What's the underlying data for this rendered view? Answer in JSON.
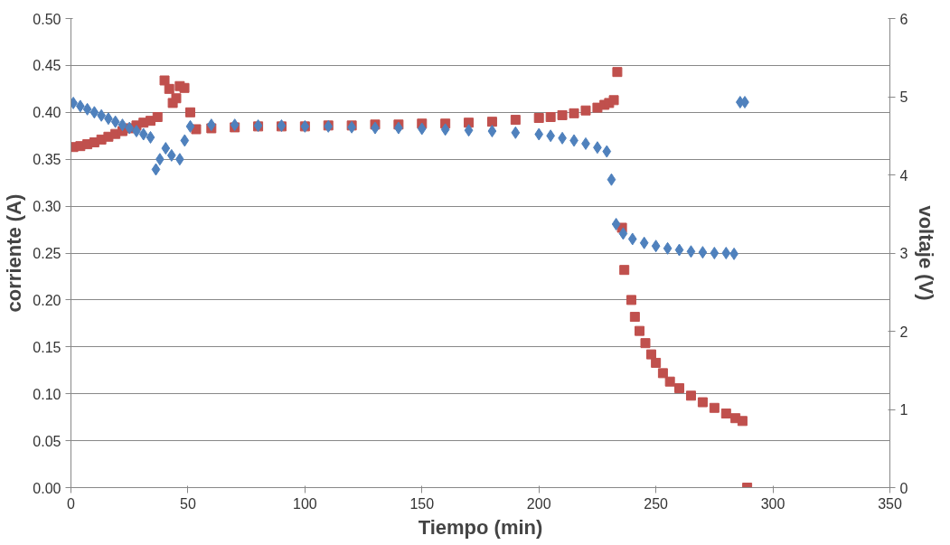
{
  "chart_data": {
    "type": "scatter",
    "xlabel": "Tiempo (min)",
    "ylabel": "corriente (A)",
    "y2label": "voltaje (V)",
    "xlim": [
      0,
      350
    ],
    "xticks": [
      0,
      50,
      100,
      150,
      200,
      250,
      300,
      350
    ],
    "ylim": [
      0,
      0.5
    ],
    "yticks": [
      {
        "value": 0,
        "label": "0.00"
      },
      0.05,
      {
        "value": 0.1,
        "label": "0.10"
      },
      0.15,
      {
        "value": 0.2,
        "label": "0.20"
      },
      0.25,
      {
        "value": 0.3,
        "label": "0.30"
      },
      0.35,
      {
        "value": 0.4,
        "label": "0.40"
      },
      0.45,
      {
        "value": 0.5,
        "label": "0.50"
      }
    ],
    "y2lim": [
      0,
      6
    ],
    "y2ticks": [
      0,
      1,
      2,
      3,
      4,
      5,
      6
    ],
    "grid": "y",
    "series": [
      {
        "color": "#c0504d",
        "marker": "square",
        "x": [
          1,
          4,
          7,
          10,
          13,
          16,
          19,
          22,
          25,
          28,
          31,
          34,
          37,
          40,
          42,
          43.5,
          45,
          46.5,
          48.5,
          51,
          53.5,
          60,
          70,
          80,
          90,
          100,
          110,
          120,
          130,
          140,
          150,
          160,
          170,
          180,
          190,
          200,
          205,
          210,
          215,
          220,
          225,
          228,
          230,
          232,
          233.5,
          235.5,
          236.5,
          239.5,
          241,
          243,
          245.5,
          248,
          250,
          253,
          256,
          260,
          265,
          270,
          275,
          280,
          284,
          287,
          289
        ],
        "values": [
          0.363,
          0.364,
          0.366,
          0.368,
          0.371,
          0.374,
          0.377,
          0.38,
          0.383,
          0.386,
          0.389,
          0.391,
          0.395,
          0.434,
          0.425,
          0.41,
          0.415,
          0.428,
          0.426,
          0.4,
          0.382,
          0.383,
          0.384,
          0.385,
          0.385,
          0.385,
          0.386,
          0.386,
          0.387,
          0.387,
          0.388,
          0.388,
          0.389,
          0.39,
          0.392,
          0.394,
          0.395,
          0.397,
          0.399,
          0.402,
          0.405,
          0.408,
          0.41,
          0.413,
          0.443,
          0.277,
          0.232,
          0.2,
          0.182,
          0.167,
          0.154,
          0.142,
          0.133,
          0.122,
          0.113,
          0.106,
          0.098,
          0.091,
          0.085,
          0.079,
          0.074,
          0.071,
          0.0
        ]
      },
      {
        "color": "#4f81bd",
        "marker": "diamond",
        "axis": "y2",
        "x": [
          1,
          4,
          7,
          10,
          13,
          16,
          19,
          22,
          25,
          28,
          31,
          34,
          36.3,
          38,
          40.5,
          43,
          46.5,
          48.6,
          51,
          60,
          70,
          80,
          90,
          100,
          110,
          120,
          130,
          140,
          150,
          160,
          170,
          180,
          190,
          200,
          205,
          210,
          215,
          220,
          225,
          229,
          231,
          233,
          236,
          240,
          245,
          250,
          255,
          260,
          265,
          270,
          275,
          280,
          283.4,
          286,
          288
        ],
        "values": [
          4.92,
          4.88,
          4.84,
          4.8,
          4.76,
          4.72,
          4.68,
          4.64,
          4.6,
          4.56,
          4.52,
          4.48,
          4.07,
          4.2,
          4.34,
          4.25,
          4.2,
          4.44,
          4.62,
          4.64,
          4.64,
          4.63,
          4.63,
          4.62,
          4.62,
          4.61,
          4.6,
          4.6,
          4.59,
          4.58,
          4.57,
          4.56,
          4.54,
          4.52,
          4.5,
          4.47,
          4.44,
          4.4,
          4.35,
          4.3,
          3.94,
          3.37,
          3.25,
          3.18,
          3.13,
          3.09,
          3.06,
          3.04,
          3.02,
          3.01,
          3.0,
          3.0,
          2.99,
          4.93,
          4.93
        ]
      }
    ]
  }
}
